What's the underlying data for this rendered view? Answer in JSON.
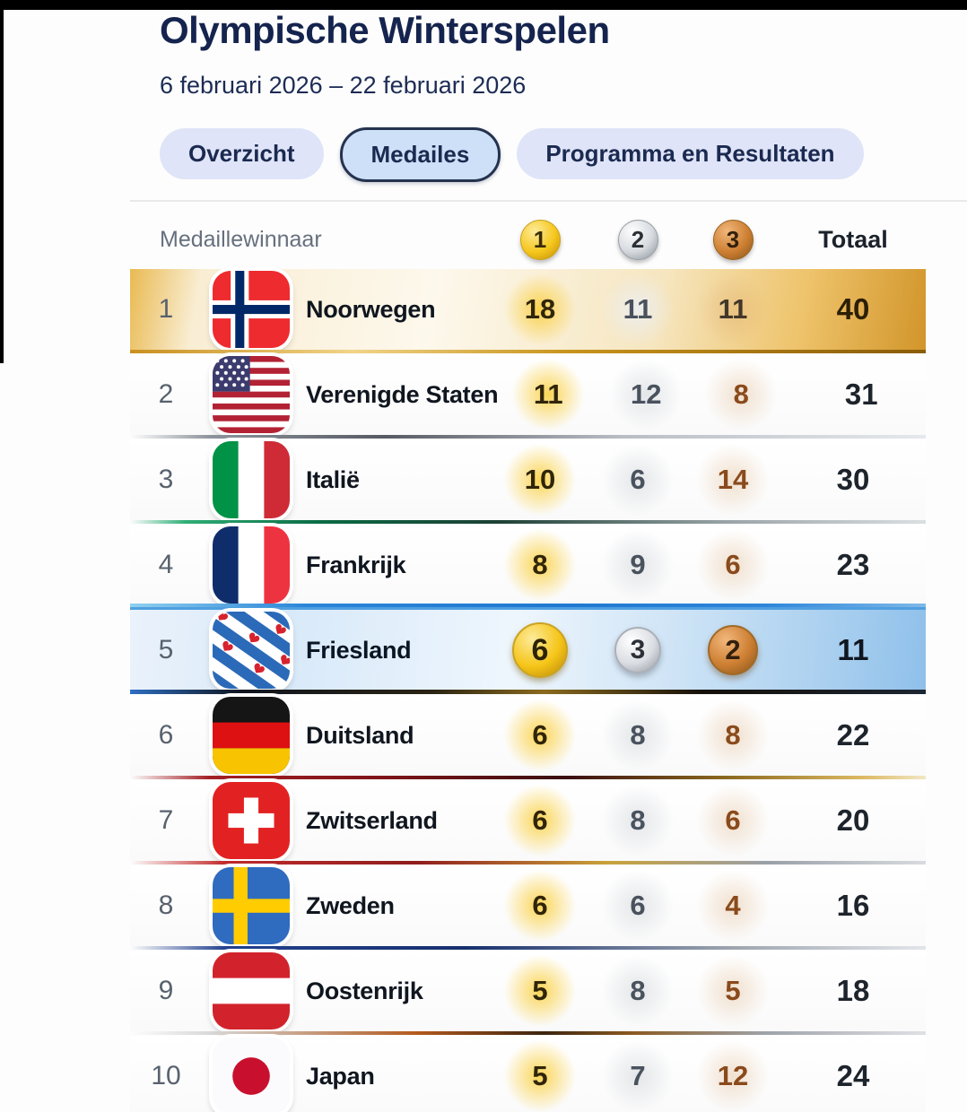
{
  "page": {
    "title": "Olympische Winterspelen",
    "subtitle": "6 februari 2026 – 22 februari 2026"
  },
  "tabs": [
    {
      "label": "Overzicht",
      "selected": false
    },
    {
      "label": "Medailes",
      "selected": true
    },
    {
      "label": "Programma en Resultaten",
      "selected": false
    }
  ],
  "table": {
    "columns": {
      "winner": "Medaillewinnaar",
      "gold": "1",
      "silver": "2",
      "bronze": "3",
      "total": "Totaal"
    },
    "rows": [
      {
        "rank": "1",
        "country": "Noorwegen",
        "flag": "norway",
        "gold": "18",
        "silver": "11",
        "bronze": "11",
        "total": "40",
        "style": "gold-leader"
      },
      {
        "rank": "2",
        "country": "Verenigde Staten",
        "flag": "united-states",
        "gold": "11",
        "silver": "12",
        "bronze": "8",
        "total": "31",
        "style": ""
      },
      {
        "rank": "3",
        "country": "Italië",
        "flag": "italy",
        "gold": "10",
        "silver": "6",
        "bronze": "14",
        "total": "30",
        "style": ""
      },
      {
        "rank": "4",
        "country": "Frankrijk",
        "flag": "france",
        "gold": "8",
        "silver": "9",
        "bronze": "6",
        "total": "23",
        "style": ""
      },
      {
        "rank": "5",
        "country": "Friesland",
        "flag": "friesland",
        "gold": "6",
        "silver": "3",
        "bronze": "2",
        "total": "11",
        "style": "highlighted"
      },
      {
        "rank": "6",
        "country": "Duitsland",
        "flag": "germany",
        "gold": "6",
        "silver": "8",
        "bronze": "8",
        "total": "22",
        "style": ""
      },
      {
        "rank": "7",
        "country": "Zwitserland",
        "flag": "switzerland",
        "gold": "6",
        "silver": "8",
        "bronze": "6",
        "total": "20",
        "style": ""
      },
      {
        "rank": "8",
        "country": "Zweden",
        "flag": "sweden",
        "gold": "6",
        "silver": "6",
        "bronze": "4",
        "total": "16",
        "style": ""
      },
      {
        "rank": "9",
        "country": "Oostenrijk",
        "flag": "austria",
        "gold": "5",
        "silver": "8",
        "bronze": "5",
        "total": "18",
        "style": ""
      },
      {
        "rank": "10",
        "country": "Japan",
        "flag": "japan",
        "gold": "5",
        "silver": "7",
        "bronze": "12",
        "total": "24",
        "style": ""
      }
    ]
  },
  "colors": {
    "title_navy": "#15244e",
    "tab_pill": "#dfe4f8",
    "tab_selected_fill": "#cde0f7",
    "tab_selected_border": "#24324e",
    "gold": "#f5c518",
    "silver": "#d5d9de",
    "bronze": "#cd7f32",
    "bronze_text": "#8a4a1c",
    "highlight_blue": "#8fc0ea",
    "leader_gold_row": "#e9ba52"
  }
}
